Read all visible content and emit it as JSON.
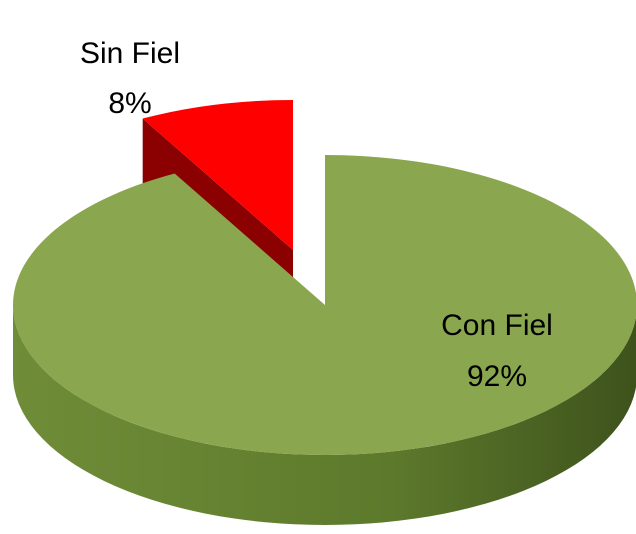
{
  "chart_data": {
    "type": "pie",
    "categories": [
      "Sin Fiel",
      "Con Fiel"
    ],
    "values": [
      8,
      92
    ],
    "value_labels": [
      "8%",
      "92%"
    ],
    "colors": [
      "#ff0000",
      "#8aa64e"
    ],
    "side_colors": [
      "#8b0000",
      "#5d7a2c"
    ]
  }
}
